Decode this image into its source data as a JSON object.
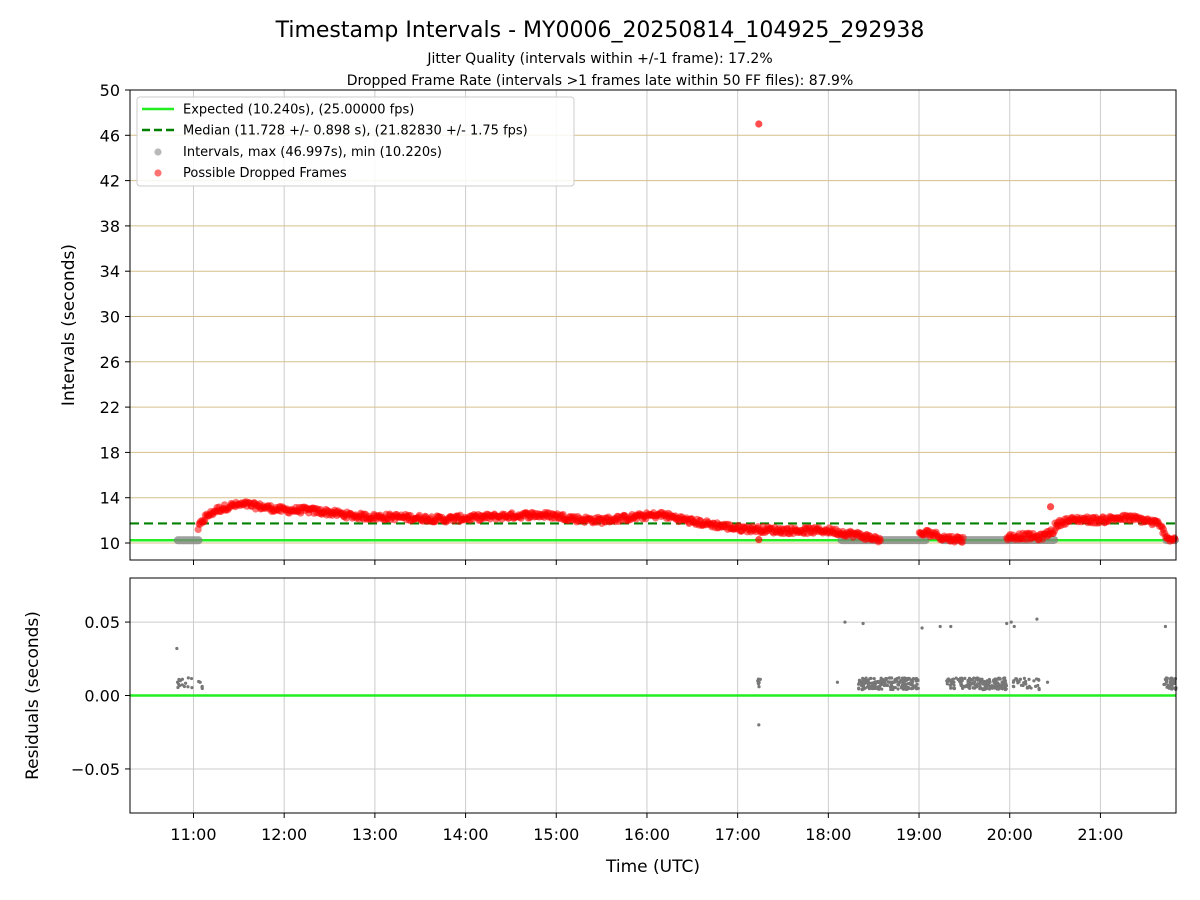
{
  "chart_data": [
    {
      "type": "scatter",
      "title": "Timestamp Intervals - MY0006_20250814_104925_292938",
      "subtitle_lines": [
        "Jitter Quality (intervals within +/-1 frame): 17.2%",
        "Dropped Frame Rate (intervals >1 frames late within 50 FF files): 87.9%"
      ],
      "ylabel": "Intervals (seconds)",
      "ylim": [
        8.5,
        50
      ],
      "yticks": [
        10,
        14,
        18,
        22,
        26,
        30,
        34,
        38,
        42,
        46,
        50
      ],
      "xlim": [
        "10:18",
        "21:50"
      ],
      "xticks": [
        "11:00",
        "12:00",
        "13:00",
        "14:00",
        "15:00",
        "16:00",
        "17:00",
        "18:00",
        "19:00",
        "20:00",
        "21:00"
      ],
      "grid": true,
      "legend_position": "top-left",
      "legend": [
        "Expected (10.240s), (25.00000 fps)",
        "Median (11.728 +/- 0.898 s), (21.82830 +/- 1.75 fps)",
        "Intervals, max (46.997s), min (10.220s)",
        "Possible Dropped Frames"
      ],
      "expected_interval": 10.24,
      "median_interval": 11.728,
      "series": [
        {
          "name": "Intervals, max (46.997s), min (10.220s)",
          "color": "#808080",
          "segments": [
            {
              "start": "10:49",
              "end": "11:04",
              "y": 10.24
            },
            {
              "start": "18:08",
              "end": "19:05",
              "y": 10.26
            },
            {
              "start": "19:15",
              "end": "20:00",
              "y": 10.26
            },
            {
              "start": "20:00",
              "end": "20:30",
              "y": 10.27
            },
            {
              "start": "21:43",
              "end": "21:50",
              "y": 10.26
            }
          ]
        },
        {
          "name": "Possible Dropped Frames",
          "color": "#ff0000",
          "trend": [
            [
              "11:03",
              11.3
            ],
            [
              "11:08",
              12.3
            ],
            [
              "11:15",
              12.9
            ],
            [
              "11:25",
              13.3
            ],
            [
              "11:35",
              13.4
            ],
            [
              "11:45",
              13.2
            ],
            [
              "12:00",
              12.9
            ],
            [
              "12:15",
              12.9
            ],
            [
              "12:30",
              12.7
            ],
            [
              "12:45",
              12.4
            ],
            [
              "13:00",
              12.3
            ],
            [
              "13:15",
              12.3
            ],
            [
              "13:30",
              12.2
            ],
            [
              "13:45",
              12.1
            ],
            [
              "14:00",
              12.2
            ],
            [
              "14:15",
              12.3
            ],
            [
              "14:30",
              12.4
            ],
            [
              "14:45",
              12.5
            ],
            [
              "15:00",
              12.4
            ],
            [
              "15:15",
              12.1
            ],
            [
              "15:30",
              12.0
            ],
            [
              "15:45",
              12.2
            ],
            [
              "16:00",
              12.4
            ],
            [
              "16:10",
              12.5
            ],
            [
              "16:20",
              12.2
            ],
            [
              "16:30",
              11.9
            ],
            [
              "16:45",
              11.6
            ],
            [
              "17:00",
              11.3
            ],
            [
              "17:15",
              11.2
            ],
            [
              "17:30",
              11.1
            ],
            [
              "17:45",
              11.1
            ],
            [
              "18:00",
              11.1
            ],
            [
              "18:10",
              10.9
            ],
            [
              "18:20",
              10.7
            ],
            [
              "18:30",
              10.4
            ],
            [
              "18:35",
              10.3
            ]
          ],
          "extra_clusters": [
            [
              [
                "19:00",
                10.7
              ],
              [
                "19:05",
                10.9
              ],
              [
                "19:10",
                10.8
              ],
              [
                "19:15",
                10.5
              ],
              [
                "19:20",
                10.4
              ],
              [
                "19:30",
                10.3
              ]
            ],
            [
              [
                "19:58",
                10.5
              ],
              [
                "20:05",
                10.6
              ],
              [
                "20:12",
                10.6
              ],
              [
                "20:20",
                10.5
              ],
              [
                "20:25",
                10.8
              ],
              [
                "20:30",
                11.2
              ]
            ],
            [
              [
                "20:30",
                11.5
              ],
              [
                "20:35",
                11.9
              ],
              [
                "20:45",
                12.1
              ],
              [
                "21:00",
                12.0
              ],
              [
                "21:10",
                12.2
              ],
              [
                "21:20",
                12.2
              ],
              [
                "21:30",
                12.0
              ],
              [
                "21:38",
                11.7
              ],
              [
                "21:42",
                11.0
              ],
              [
                "21:45",
                10.4
              ],
              [
                "21:50",
                10.3
              ]
            ]
          ],
          "outliers": [
            [
              "17:14",
              46.997
            ],
            [
              "20:27",
              13.2
            ],
            [
              "17:14",
              10.3
            ]
          ]
        }
      ]
    },
    {
      "type": "scatter",
      "ylabel": "Residuals (seconds)",
      "xlabel": "Time (UTC)",
      "ylim": [
        -0.08,
        0.08
      ],
      "yticks": [
        -0.05,
        0.0,
        0.05
      ],
      "ytick_labels": [
        "−0.05",
        "0.00",
        "0.05"
      ],
      "grid": true,
      "zero_line_color": "#22ee22",
      "series": [
        {
          "name": "Residuals",
          "color": "#777777",
          "bands": [
            {
              "start": "10:49",
              "end": "11:06",
              "y": 0.008,
              "count": 22
            },
            {
              "start": "18:20",
              "end": "19:00",
              "y": 0.008,
              "count": 180
            },
            {
              "start": "19:18",
              "end": "19:58",
              "y": 0.008,
              "count": 180
            },
            {
              "start": "20:02",
              "end": "20:20",
              "y": 0.008,
              "count": 30
            },
            {
              "start": "21:42",
              "end": "21:50",
              "y": 0.008,
              "count": 40
            },
            {
              "start": "17:13",
              "end": "17:15",
              "y": 0.008,
              "count": 6
            }
          ],
          "points": [
            [
              "10:49",
              0.032
            ],
            [
              "17:14",
              -0.02
            ],
            [
              "17:15",
              0.011
            ],
            [
              "18:06",
              0.009
            ],
            [
              "18:11",
              0.05
            ],
            [
              "18:23",
              0.049
            ],
            [
              "19:02",
              0.046
            ],
            [
              "19:14",
              0.047
            ],
            [
              "19:21",
              0.047
            ],
            [
              "19:58",
              0.049
            ],
            [
              "20:01",
              0.05
            ],
            [
              "20:03",
              0.047
            ],
            [
              "20:18",
              0.052
            ],
            [
              "21:43",
              0.047
            ],
            [
              "20:25",
              0.009
            ]
          ]
        }
      ]
    }
  ]
}
